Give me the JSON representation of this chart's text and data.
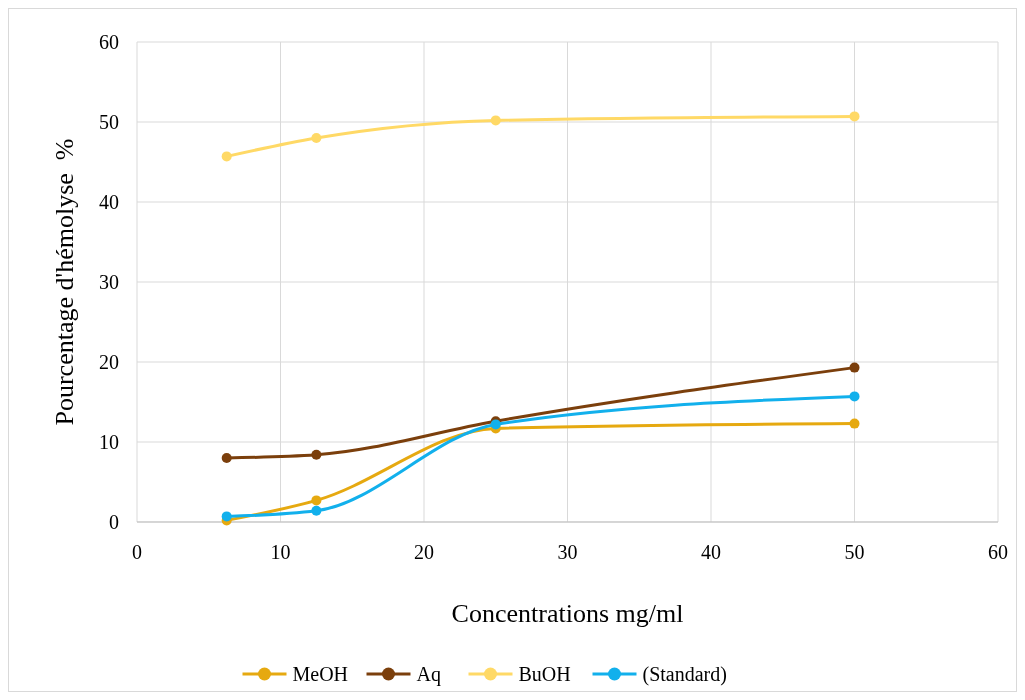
{
  "chart_data": {
    "type": "line",
    "xlabel": "Concentrations mg/ml",
    "ylabel": "Pourcentage d'hémolyse  %",
    "x": [
      6.25,
      12.5,
      25,
      50
    ],
    "series": [
      {
        "name": "MeOH",
        "color": "#e6a910",
        "values": [
          0.2,
          2.7,
          11.7,
          12.3
        ]
      },
      {
        "name": "Aq",
        "color": "#7b3f0c",
        "values": [
          8.0,
          8.4,
          12.6,
          19.3
        ]
      },
      {
        "name": "BuOH",
        "color": "#ffd966",
        "values": [
          45.7,
          48.0,
          50.2,
          50.7
        ]
      },
      {
        "name": "(Standard)",
        "color": "#12b0ec",
        "values": [
          0.7,
          1.4,
          12.2,
          15.7
        ]
      }
    ],
    "xlim": [
      0,
      60
    ],
    "xticks": [
      0,
      10,
      20,
      30,
      40,
      50,
      60
    ],
    "ylim": [
      0,
      60
    ],
    "yticks": [
      0,
      10,
      20,
      30,
      40,
      50,
      60
    ],
    "grid": true,
    "legend": "bottom",
    "marker": "circle",
    "line_style": "solid"
  }
}
